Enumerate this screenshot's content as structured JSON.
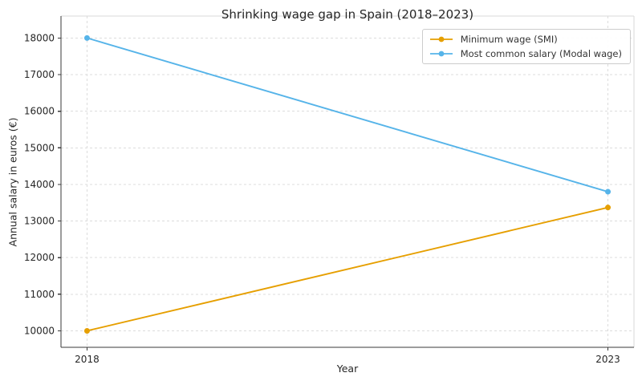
{
  "page": {
    "background": "#ffffff"
  },
  "chart_data": {
    "type": "line",
    "title": "Shrinking wage gap in Spain (2018–2023)",
    "xlabel": "Year",
    "ylabel": "Annual salary in euros (€)",
    "x": [
      2018,
      2023
    ],
    "series": [
      {
        "name": "Minimum wage (SMI)",
        "color": "#E69F00",
        "values": [
          10000,
          13370
        ]
      },
      {
        "name": "Most common salary (Modal wage)",
        "color": "#56B4E9",
        "values": [
          18000,
          13800
        ]
      }
    ],
    "xticks": [
      2018,
      2023
    ],
    "xtick_labels": [
      "2018",
      "2023"
    ],
    "yticks": [
      10000,
      11000,
      12000,
      13000,
      14000,
      15000,
      16000,
      17000,
      18000
    ],
    "ytick_labels": [
      "10000",
      "11000",
      "12000",
      "13000",
      "14000",
      "15000",
      "16000",
      "17000",
      "18000"
    ],
    "xlim": [
      2017.75,
      2023.25
    ],
    "ylim": [
      9550,
      18600
    ],
    "grid": true,
    "grid_linestyle": "dashed",
    "legend_position": "upper right"
  },
  "style": {
    "grid_color": "#dcdcdc",
    "spine_dark": "#3a3a3a",
    "spine_light": "#d9d9d9",
    "tick_color": "#3a3a3a",
    "tick_label_color": "#262626",
    "text_color": "#262626",
    "legend_border": "#cccccc",
    "legend_bg": "#ffffff"
  }
}
